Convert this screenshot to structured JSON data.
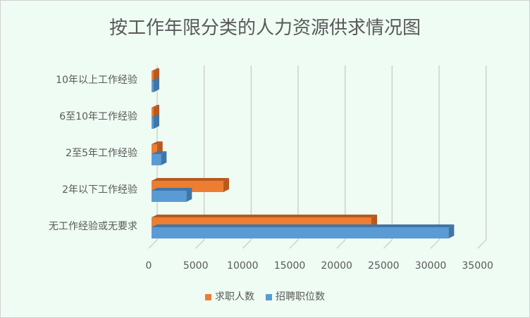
{
  "chart_data": {
    "type": "bar",
    "orientation": "horizontal",
    "style": "3d-clustered",
    "title": "按工作年限分类的人力资源供求情况图",
    "categories": [
      "无工作经验或无要求",
      "2年以下工作经验",
      "2至5年工作经验",
      "6至10年工作经验",
      "10年以上工作经验"
    ],
    "series": [
      {
        "name": "求职人数",
        "color": "#ed7d31",
        "values": [
          23400,
          7650,
          580,
          150,
          150
        ]
      },
      {
        "name": "招聘职位数",
        "color": "#5b9bd5",
        "values": [
          31600,
          3700,
          1000,
          200,
          200
        ]
      }
    ],
    "xlim": [
      0,
      35000
    ],
    "xticks": [
      0,
      5000,
      10000,
      15000,
      20000,
      25000,
      30000,
      35000
    ],
    "grid": true,
    "legend": "bottom"
  }
}
